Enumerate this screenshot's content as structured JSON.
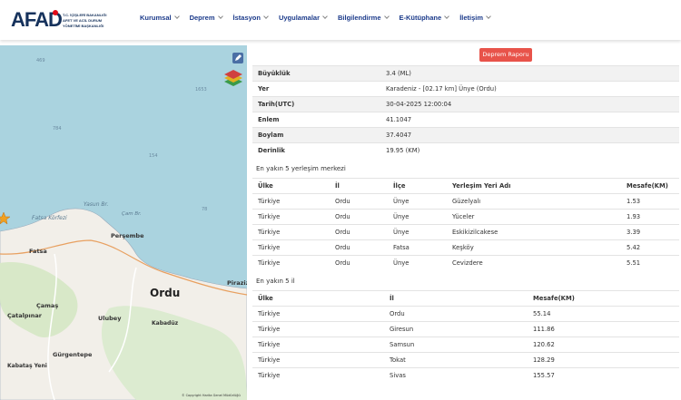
{
  "header": {
    "logo": "AFAD",
    "logo_sub": [
      "T.C. İÇİŞLERİ BAKANLIĞI",
      "AFET VE ACİL DURUM",
      "YÖNETİMİ BAŞKANLIĞI"
    ],
    "nav": [
      "Kurumsal",
      "Deprem",
      "İstasyon",
      "Uygulamalar",
      "Bilgilendirme",
      "E-Kütüphane",
      "İletişim"
    ]
  },
  "map": {
    "labels": [
      "469",
      "1653",
      "784",
      "154",
      "78",
      "Yasun Br.",
      "Fatsa Körfezi",
      "Çam Br.",
      "Perşembe",
      "Fatsa",
      "Ordu",
      "Piraziz",
      "Çamaş",
      "Çatalpınar",
      "Ulubey",
      "Kabadüz",
      "Gürgentepe",
      "Kabataş Yeni"
    ],
    "copyright": "© Copyright Harita Genel Müdürlüğü"
  },
  "button": "Deprem Raporu",
  "details": [
    [
      "Büyüklük",
      "3.4 (ML)"
    ],
    [
      "Yer",
      "Karadeniz - [02.17 km] Ünye (Ordu)"
    ],
    [
      "Tarih(UTC)",
      "30-04-2025 12:00:04"
    ],
    [
      "Enlem",
      "41.1047"
    ],
    [
      "Boylam",
      "37.4047"
    ],
    [
      "Derinlik",
      "19.95 (KM)"
    ]
  ],
  "settlements": {
    "title": "En yakın 5 yerleşim merkezi",
    "headers": [
      "Ülke",
      "İl",
      "İlçe",
      "Yerleşim Yeri Adı",
      "Mesafe(KM)"
    ],
    "rows": [
      [
        "Türkiye",
        "Ordu",
        "Ünye",
        "Güzelyalı",
        "1.53"
      ],
      [
        "Türkiye",
        "Ordu",
        "Ünye",
        "Yüceler",
        "1.93"
      ],
      [
        "Türkiye",
        "Ordu",
        "Ünye",
        "Eskikizilcakese",
        "3.39"
      ],
      [
        "Türkiye",
        "Ordu",
        "Fatsa",
        "Keşköy",
        "5.42"
      ],
      [
        "Türkiye",
        "Ordu",
        "Ünye",
        "Cevizdere",
        "5.51"
      ]
    ]
  },
  "provinces": {
    "title": "En yakın 5 il",
    "headers": [
      "Ülke",
      "İl",
      "Mesafe(KM)"
    ],
    "rows": [
      [
        "Türkiye",
        "Ordu",
        "55.14"
      ],
      [
        "Türkiye",
        "Giresun",
        "111.86"
      ],
      [
        "Türkiye",
        "Samsun",
        "120.62"
      ],
      [
        "Türkiye",
        "Tokat",
        "128.29"
      ],
      [
        "Türkiye",
        "Sivas",
        "155.57"
      ]
    ]
  }
}
